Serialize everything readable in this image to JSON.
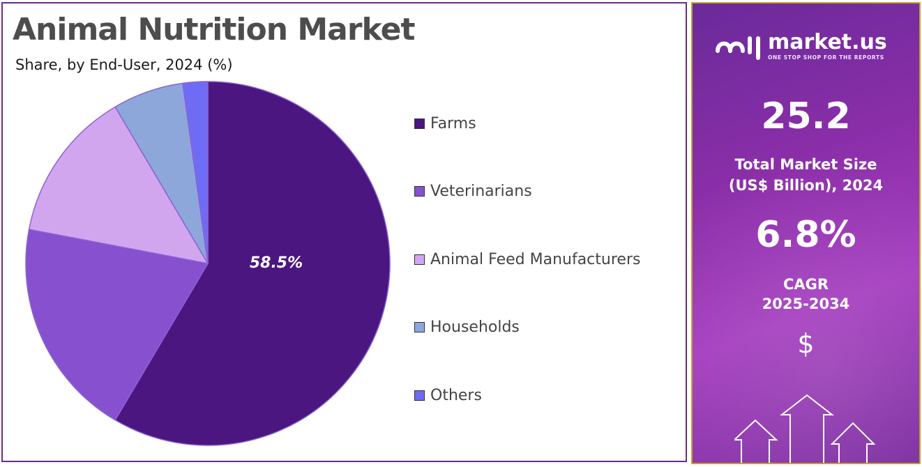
{
  "title": "Animal Nutrition Market",
  "subtitle": "Share, by End-User, 2024 (%)",
  "chart_data": {
    "type": "pie",
    "title": "Animal Nutrition Market",
    "subtitle": "Share, by End-User, 2024 (%)",
    "categories": [
      "Farms",
      "Veterinarians",
      "Animal Feed Manufacturers",
      "Households",
      "Others"
    ],
    "values": [
      58.5,
      19.5,
      13.5,
      6.3,
      2.2
    ],
    "colors": [
      "#4b1680",
      "#8650cf",
      "#d2a6ee",
      "#8ea7db",
      "#6e6cf4"
    ],
    "data_labels": [
      "58.5%",
      "",
      "",
      "",
      ""
    ],
    "legend_position": "right",
    "start_angle_deg": 0,
    "direction": "clockwise"
  },
  "legend": [
    {
      "label": "Farms"
    },
    {
      "label": "Veterinarians"
    },
    {
      "label": "Animal Feed Manufacturers"
    },
    {
      "label": "Households"
    },
    {
      "label": "Others"
    }
  ],
  "side": {
    "brand_name": "market.us",
    "brand_tagline": "ONE STOP SHOP FOR THE REPORTS",
    "market_size_value": "25.2",
    "market_size_label_1": "Total Market Size",
    "market_size_label_2": "(US$ Billion), 2024",
    "cagr_value": "6.8%",
    "cagr_label_1": "CAGR",
    "cagr_label_2": "2025-2034",
    "currency_symbol": "$"
  }
}
